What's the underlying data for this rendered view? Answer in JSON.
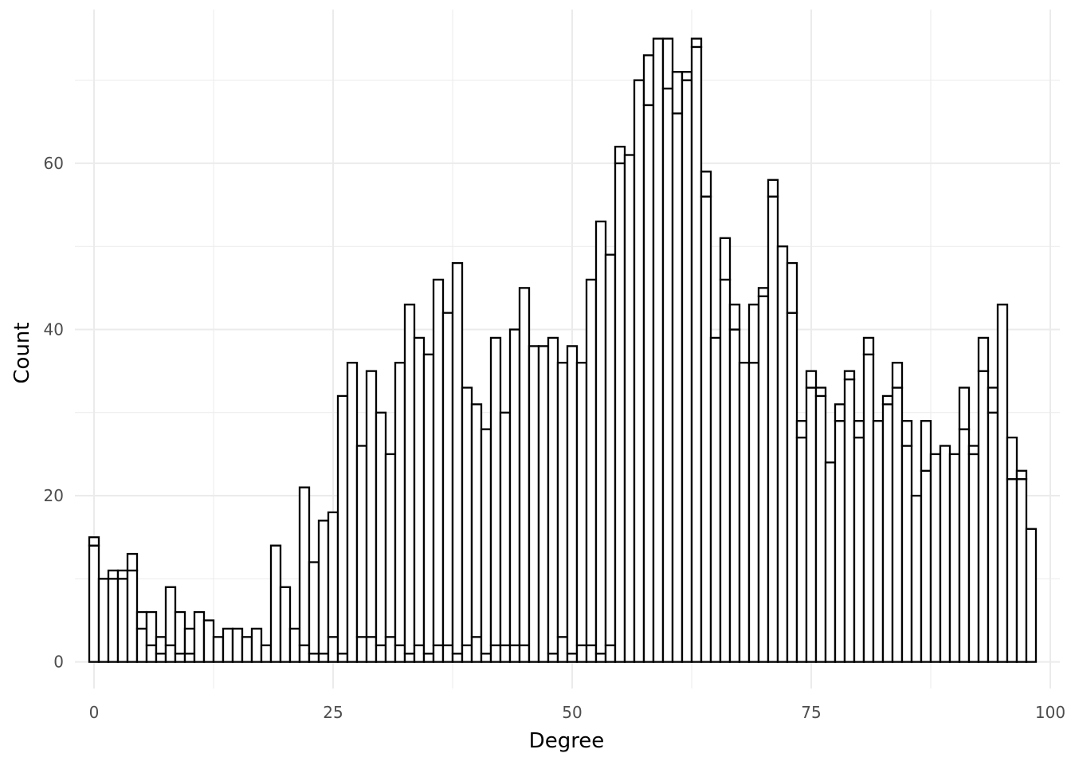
{
  "chart_data": {
    "type": "bar",
    "style": "stacked histogram, outlined bars with white fill, minimal theme",
    "xlabel": "Degree",
    "ylabel": "Count",
    "xlim": [
      -2,
      101
    ],
    "ylim": [
      -3.2,
      78.5
    ],
    "x_ticks": [
      0,
      25,
      50,
      75,
      100
    ],
    "y_ticks": [
      0,
      20,
      40,
      60
    ],
    "grid": true,
    "legend": "none",
    "colors": {
      "bar_fill": "#ffffff",
      "bar_outline": "#000000",
      "grid": "#ebebeb",
      "tick_text": "#4d4d4d"
    },
    "x": [
      0,
      1,
      2,
      3,
      4,
      5,
      6,
      7,
      8,
      9,
      10,
      11,
      12,
      13,
      14,
      15,
      16,
      17,
      18,
      19,
      20,
      21,
      22,
      23,
      24,
      25,
      26,
      27,
      28,
      29,
      30,
      31,
      32,
      33,
      34,
      35,
      36,
      37,
      38,
      39,
      40,
      41,
      42,
      43,
      44,
      45,
      46,
      47,
      48,
      49,
      50,
      51,
      52,
      53,
      54,
      55,
      56,
      57,
      58,
      59,
      60,
      61,
      62,
      63,
      64,
      65,
      66,
      67,
      68,
      69,
      70,
      71,
      72,
      73,
      74,
      75,
      76,
      77,
      78,
      79,
      80,
      81,
      82,
      83,
      84,
      85,
      86,
      87,
      88,
      89,
      90,
      91,
      92,
      93,
      94,
      95,
      96,
      97,
      98,
      99
    ],
    "series": [
      {
        "values": [
          14,
          10,
          10,
          10,
          11,
          4,
          2,
          1,
          2,
          1,
          1,
          0,
          0,
          0,
          0,
          0,
          0,
          0,
          0,
          0,
          0,
          0,
          2,
          1,
          1,
          3,
          1,
          0,
          3,
          3,
          2,
          3,
          2,
          1,
          2,
          1,
          2,
          2,
          1,
          2,
          3,
          1,
          2,
          2,
          2,
          2,
          0,
          0,
          1,
          3,
          1,
          2,
          2,
          1,
          2,
          60,
          61,
          70,
          67,
          75,
          69,
          66,
          70,
          74,
          56,
          39,
          46,
          40,
          36,
          36,
          44,
          56,
          50,
          42,
          27,
          33,
          32,
          24,
          29,
          34,
          27,
          37,
          29,
          31,
          33,
          26,
          20,
          23,
          25,
          26,
          25,
          28,
          25,
          35,
          30,
          43,
          22,
          22,
          16,
          0
        ]
      },
      {
        "values": [
          1,
          0,
          1,
          1,
          2,
          2,
          4,
          2,
          7,
          5,
          3,
          6,
          5,
          3,
          4,
          4,
          3,
          4,
          2,
          14,
          9,
          4,
          19,
          11,
          16,
          15,
          31,
          36,
          23,
          32,
          28,
          22,
          34,
          42,
          37,
          36,
          44,
          40,
          47,
          31,
          28,
          27,
          37,
          28,
          38,
          43,
          38,
          38,
          38,
          33,
          37,
          34,
          44,
          52,
          47,
          2,
          0,
          0,
          6,
          0,
          6,
          5,
          1,
          1,
          3,
          0,
          5,
          3,
          0,
          7,
          1,
          2,
          0,
          6,
          2,
          2,
          1,
          0,
          2,
          1,
          2,
          2,
          0,
          1,
          3,
          3,
          0,
          6,
          0,
          0,
          0,
          5,
          1,
          4,
          3,
          0,
          5,
          1,
          0,
          0
        ]
      }
    ],
    "totals": [
      15,
      10,
      11,
      11,
      13,
      6,
      6,
      3,
      9,
      6,
      4,
      6,
      5,
      3,
      4,
      4,
      3,
      4,
      2,
      14,
      9,
      4,
      21,
      12,
      17,
      18,
      32,
      36,
      26,
      35,
      30,
      25,
      36,
      43,
      39,
      37,
      46,
      42,
      48,
      33,
      31,
      28,
      39,
      30,
      40,
      45,
      38,
      38,
      39,
      36,
      38,
      36,
      46,
      53,
      49,
      62,
      61,
      70,
      73,
      75,
      75,
      71,
      71,
      75,
      59,
      39,
      51,
      43,
      36,
      43,
      45,
      58,
      50,
      48,
      29,
      35,
      33,
      24,
      31,
      35,
      29,
      39,
      29,
      32,
      36,
      29,
      20,
      29,
      25,
      26,
      25,
      33,
      26,
      39,
      33,
      43,
      27,
      23,
      16,
      0
    ]
  }
}
